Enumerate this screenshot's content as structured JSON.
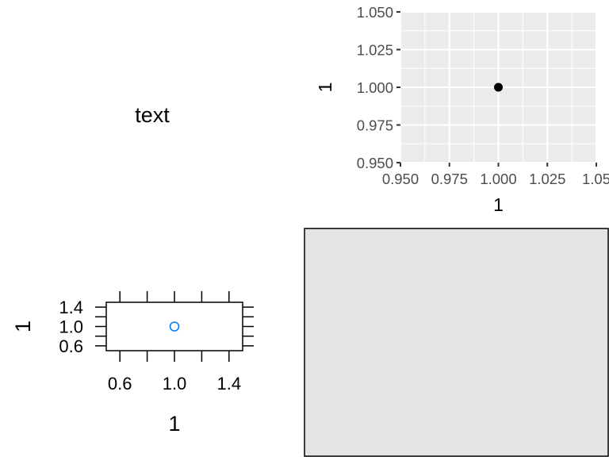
{
  "text_panel": {
    "label": "text"
  },
  "chart_data": [
    {
      "type": "scatter",
      "style": "ggplot",
      "x": [
        1
      ],
      "y": [
        1
      ],
      "xlabel": "1",
      "ylabel": "1",
      "xlim": [
        0.95,
        1.05
      ],
      "ylim": [
        0.95,
        1.05
      ],
      "xticks": [
        0.95,
        0.975,
        1.0,
        1.025,
        1.05
      ],
      "xtick_labels": [
        "0.950",
        "0.975",
        "1.000",
        "1.025",
        "1.05"
      ],
      "yticks": [
        0.95,
        0.975,
        1.0,
        1.025,
        1.05
      ],
      "ytick_labels": [
        "0.950",
        "0.975",
        "1.000",
        "1.025",
        "1.050"
      ],
      "grid": true,
      "point_color": "#000000",
      "panel_color": "#ebebeb",
      "grid_color": "#ffffff"
    },
    {
      "type": "scatter",
      "style": "lattice",
      "x": [
        1
      ],
      "y": [
        1
      ],
      "xlabel": "1",
      "ylabel": "1",
      "xlim": [
        0.5,
        1.5
      ],
      "ylim": [
        0.5,
        1.5
      ],
      "xticks": [
        0.6,
        0.8,
        1.0,
        1.2,
        1.4
      ],
      "xtick_labels": [
        "0.6",
        "",
        "1.0",
        "",
        "1.4"
      ],
      "yticks": [
        0.6,
        0.8,
        1.0,
        1.2,
        1.4
      ],
      "ytick_labels": [
        "0.6",
        "",
        "1.0",
        "",
        "1.4"
      ],
      "grid": false,
      "point_color": "#0080ff"
    }
  ],
  "empty_panel": {
    "fill": "#e4e4e4",
    "border": "#000000"
  }
}
